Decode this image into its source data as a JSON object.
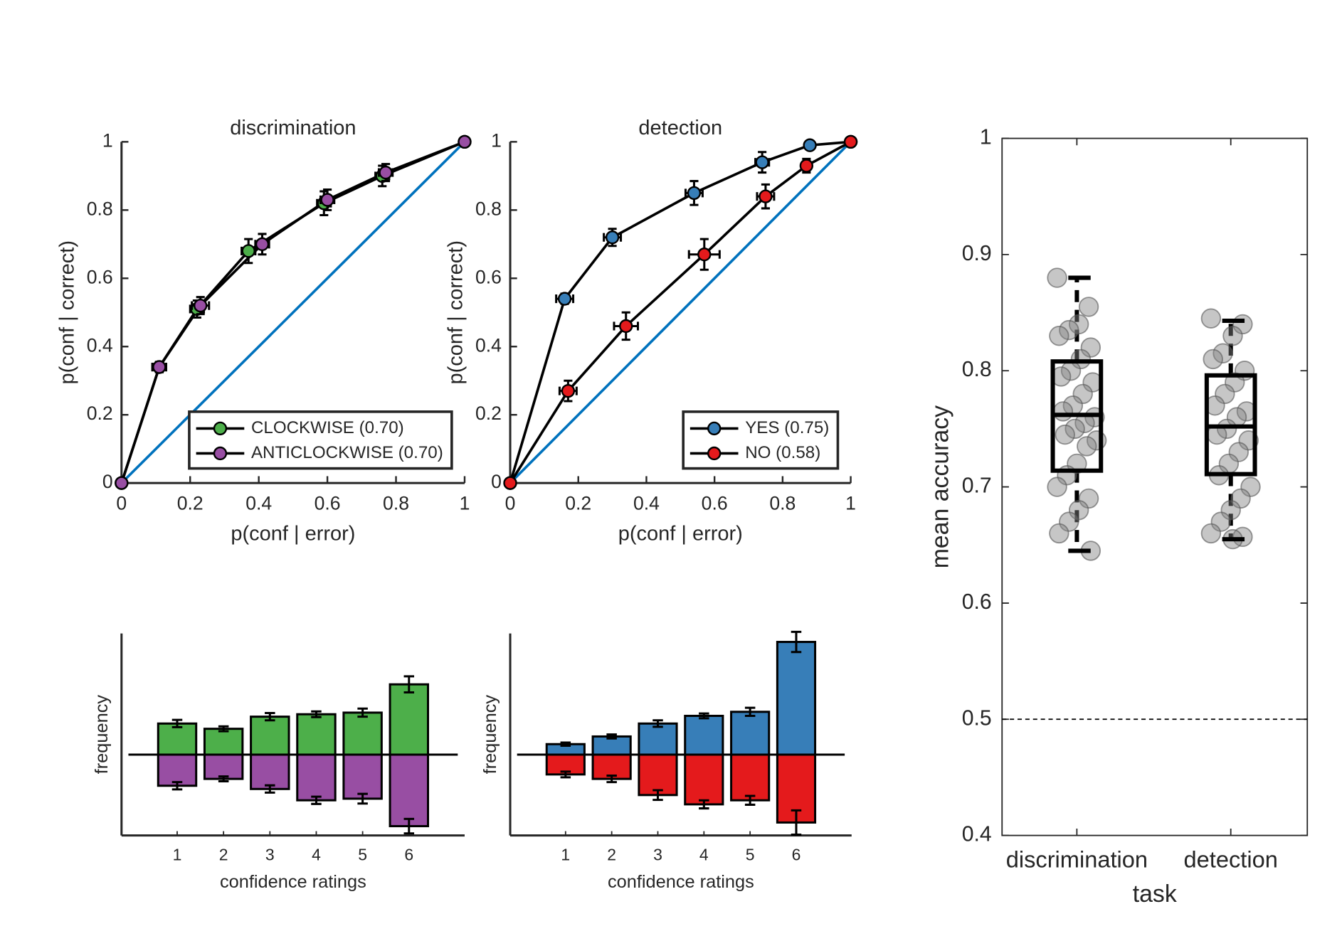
{
  "chart_data": [
    {
      "type": "line",
      "title": "discrimination",
      "xlabel": "p(conf | error)",
      "ylabel": "p(conf | correct)",
      "xlim": [
        0,
        1
      ],
      "ylim": [
        0,
        1
      ],
      "xticks": [
        0,
        0.2,
        0.4,
        0.6,
        0.8,
        1
      ],
      "yticks": [
        0,
        0.2,
        0.4,
        0.6,
        0.8,
        1
      ],
      "legend": "lower right",
      "reference_line_color": "#0072bd",
      "series": [
        {
          "name": "CLOCKWISE (0.70)",
          "color": "#4daf4a",
          "x": [
            0,
            0.11,
            0.22,
            0.37,
            0.59,
            0.76,
            1
          ],
          "values": [
            0,
            0.34,
            0.51,
            0.68,
            0.82,
            0.9,
            1
          ],
          "x_errors": [
            0,
            0.02,
            0.02,
            0.02,
            0.02,
            0.02,
            0
          ],
          "y_errors": [
            0,
            0.015,
            0.025,
            0.035,
            0.035,
            0.03,
            0
          ]
        },
        {
          "name": "ANTICLOCKWISE (0.70)",
          "color": "#984ea3",
          "x": [
            0,
            0.11,
            0.23,
            0.41,
            0.6,
            0.77,
            1
          ],
          "values": [
            0,
            0.34,
            0.52,
            0.7,
            0.83,
            0.91,
            1
          ],
          "x_errors": [
            0,
            0.02,
            0.025,
            0.02,
            0.02,
            0.02,
            0
          ],
          "y_errors": [
            0,
            0.015,
            0.025,
            0.03,
            0.03,
            0.025,
            0
          ]
        }
      ]
    },
    {
      "type": "line",
      "title": "detection",
      "xlabel": "p(conf | error)",
      "ylabel": "p(conf | correct)",
      "xlim": [
        0,
        1
      ],
      "ylim": [
        0,
        1
      ],
      "xticks": [
        0,
        0.2,
        0.4,
        0.6,
        0.8,
        1
      ],
      "yticks": [
        0,
        0.2,
        0.4,
        0.6,
        0.8,
        1
      ],
      "legend": "lower right",
      "reference_line_color": "#0072bd",
      "series": [
        {
          "name": "YES (0.75)",
          "color": "#377eb8",
          "x": [
            0,
            0.16,
            0.3,
            0.54,
            0.74,
            0.88,
            1
          ],
          "values": [
            0,
            0.54,
            0.72,
            0.85,
            0.94,
            0.99,
            1
          ],
          "x_errors": [
            0,
            0.025,
            0.025,
            0.025,
            0.02,
            0.01,
            0
          ],
          "y_errors": [
            0,
            0.015,
            0.025,
            0.035,
            0.03,
            0.01,
            0
          ]
        },
        {
          "name": "NO (0.58)",
          "color": "#e41a1c",
          "x": [
            0,
            0.17,
            0.34,
            0.57,
            0.75,
            0.87,
            1
          ],
          "values": [
            0,
            0.27,
            0.46,
            0.67,
            0.84,
            0.93,
            1
          ],
          "x_errors": [
            0,
            0.025,
            0.035,
            0.045,
            0.025,
            0.01,
            0
          ],
          "y_errors": [
            0,
            0.03,
            0.04,
            0.045,
            0.035,
            0.02,
            0
          ]
        }
      ]
    },
    {
      "type": "bar",
      "xlabel": "confidence ratings",
      "ylabel": "frequency",
      "xlim": [
        -0.2,
        7.2
      ],
      "ylim": [
        -0.2,
        0.3
      ],
      "x": [
        1,
        2,
        3,
        4,
        5,
        6
      ],
      "xticks": [
        1,
        2,
        3,
        4,
        5,
        6
      ],
      "series": [
        {
          "color": "#4daf4a",
          "values": [
            0.077,
            0.064,
            0.094,
            0.1,
            0.104,
            0.174
          ],
          "errors": [
            0.009,
            0.006,
            0.009,
            0.007,
            0.01,
            0.02
          ]
        },
        {
          "color": "#984ea3",
          "values": [
            -0.077,
            -0.06,
            -0.085,
            -0.113,
            -0.109,
            -0.177
          ],
          "errors": [
            0.009,
            0.006,
            0.009,
            0.009,
            0.012,
            0.018
          ]
        }
      ]
    },
    {
      "type": "bar",
      "xlabel": "confidence ratings",
      "ylabel": "frequency",
      "xlim": [
        -0.2,
        7.2
      ],
      "ylim": [
        -0.2,
        0.3
      ],
      "x": [
        1,
        2,
        3,
        4,
        5,
        6
      ],
      "xticks": [
        1,
        2,
        3,
        4,
        5,
        6
      ],
      "series": [
        {
          "color": "#377eb8",
          "values": [
            0.026,
            0.045,
            0.077,
            0.096,
            0.106,
            0.279
          ],
          "errors": [
            0.004,
            0.005,
            0.008,
            0.006,
            0.01,
            0.025
          ]
        },
        {
          "color": "#e41a1c",
          "values": [
            -0.049,
            -0.06,
            -0.1,
            -0.123,
            -0.113,
            -0.168
          ],
          "errors": [
            0.007,
            0.008,
            0.012,
            0.01,
            0.011,
            0.03
          ]
        }
      ]
    },
    {
      "type": "box",
      "xlabel": "task",
      "ylabel": "mean accuracy",
      "categories": [
        "discrimination",
        "detection"
      ],
      "ylim": [
        0.4,
        1
      ],
      "yticks": [
        0.4,
        0.5,
        0.6,
        0.7,
        0.8,
        0.9,
        1
      ],
      "reference_line": 0.5,
      "point_color": "#808080",
      "boxes": [
        {
          "whisker_low": 0.645,
          "q1": 0.714,
          "median": 0.762,
          "q3": 0.808,
          "whisker_high": 0.88,
          "points": [
            0.88,
            0.855,
            0.84,
            0.835,
            0.83,
            0.82,
            0.81,
            0.8,
            0.795,
            0.79,
            0.78,
            0.77,
            0.765,
            0.76,
            0.755,
            0.75,
            0.745,
            0.74,
            0.735,
            0.72,
            0.71,
            0.7,
            0.69,
            0.68,
            0.67,
            0.66,
            0.645
          ]
        },
        {
          "whisker_low": 0.655,
          "q1": 0.711,
          "median": 0.752,
          "q3": 0.796,
          "whisker_high": 0.843,
          "points": [
            0.845,
            0.84,
            0.83,
            0.815,
            0.81,
            0.8,
            0.79,
            0.78,
            0.77,
            0.765,
            0.76,
            0.75,
            0.745,
            0.74,
            0.73,
            0.72,
            0.71,
            0.7,
            0.69,
            0.68,
            0.67,
            0.66,
            0.657,
            0.655
          ]
        }
      ]
    }
  ]
}
